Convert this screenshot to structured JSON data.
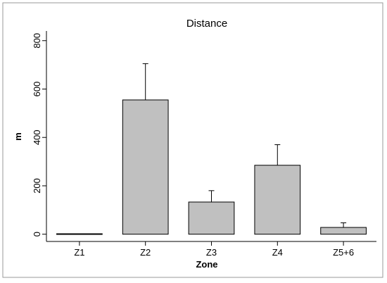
{
  "chart_data": {
    "type": "bar",
    "title": "Distance",
    "xlabel": "Zone",
    "ylabel": "m",
    "categories": [
      "Z1",
      "Z2",
      "Z3",
      "Z4",
      "Z5+6"
    ],
    "values": [
      2,
      555,
      133,
      285,
      28
    ],
    "error_upper": [
      2,
      705,
      180,
      370,
      47
    ],
    "yticks": [
      0,
      200,
      400,
      600,
      800
    ],
    "ylim": [
      -30,
      840
    ],
    "bar_color": "#c0c0c0",
    "grid": false,
    "legend": "none"
  }
}
